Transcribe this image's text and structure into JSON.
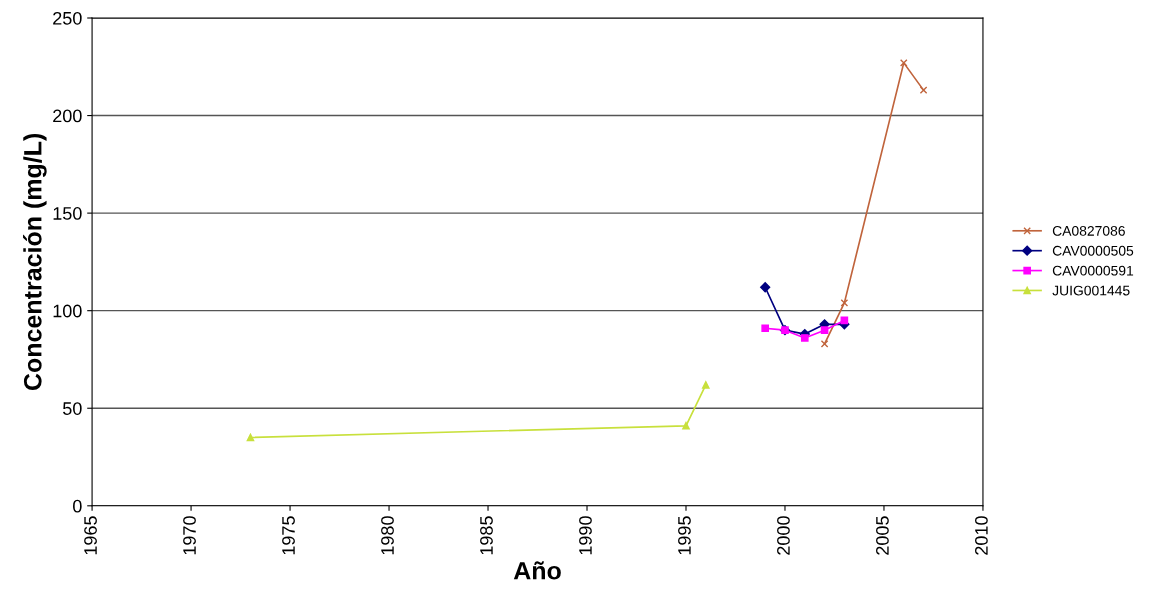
{
  "chart_data": {
    "type": "line",
    "xlabel": "Año",
    "ylabel": "Concentración (mg/L)",
    "xlim": [
      1965,
      2010
    ],
    "xticks": [
      1965,
      1970,
      1975,
      1980,
      1985,
      1990,
      1995,
      2000,
      2005,
      2010
    ],
    "ylim": [
      0,
      250
    ],
    "yticks": [
      0,
      50,
      100,
      150,
      200,
      250
    ],
    "grid": "y",
    "legend": "right",
    "series": [
      {
        "name": "CA0827086",
        "color": "#c0643c",
        "marker": "cross",
        "x": [
          2002,
          2003,
          2006,
          2007
        ],
        "values": [
          83,
          104,
          227,
          213
        ]
      },
      {
        "name": "CAV0000505",
        "color": "#000080",
        "marker": "diamond",
        "x": [
          1999,
          2000,
          2001,
          2002,
          2003
        ],
        "values": [
          112,
          90,
          88,
          93,
          93
        ]
      },
      {
        "name": "CAV0000591",
        "color": "#ff00ff",
        "marker": "square",
        "x": [
          1999,
          2000,
          2001,
          2002,
          2003
        ],
        "values": [
          91,
          90,
          86,
          90,
          95
        ]
      },
      {
        "name": "JUIG001445",
        "color": "#c8e03c",
        "marker": "triangle",
        "x": [
          1973,
          1995,
          1996
        ],
        "values": [
          35,
          41,
          62
        ]
      }
    ]
  }
}
